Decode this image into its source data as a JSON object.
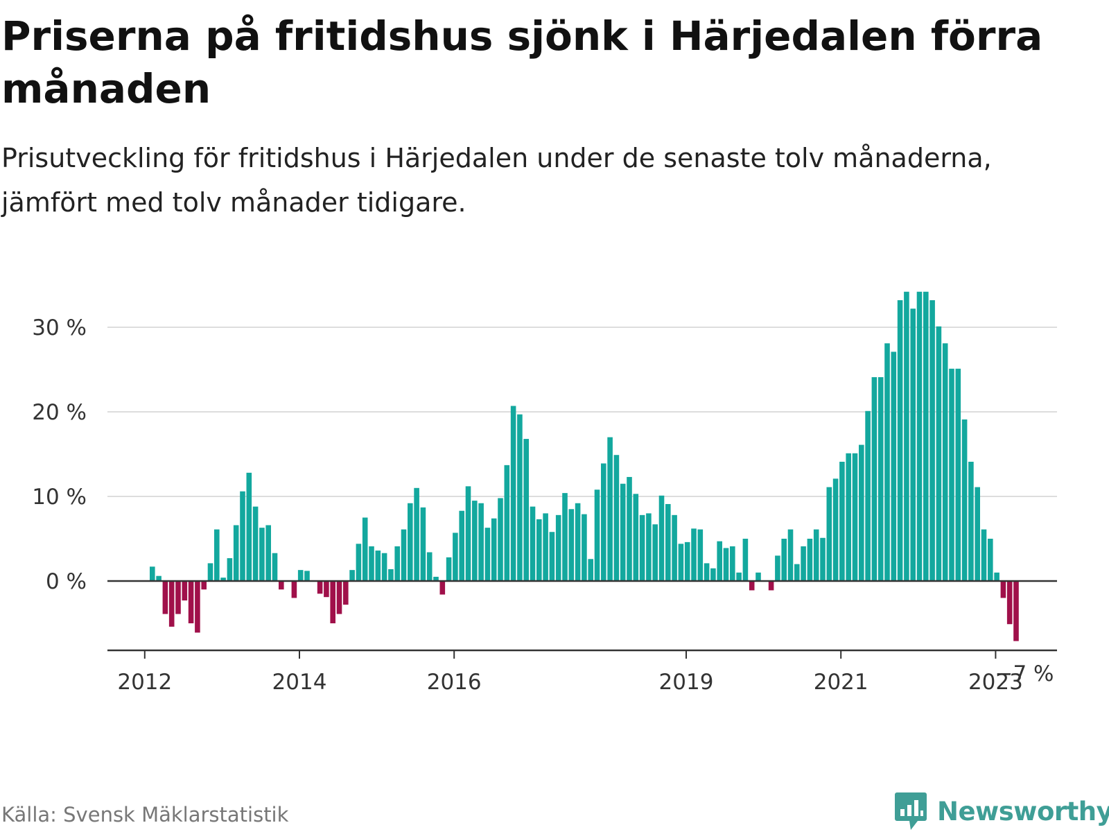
{
  "title": "Priserna på fritidshus sjönk i Härjedalen förra månaden",
  "subtitle": "Prisutveckling för fritidshus i Härjedalen under de senaste tolv månaderna, jämfört med tolv månader tidigare.",
  "source": "Källa: Svensk Mäklarstatistik",
  "brand": {
    "name": "Newsworthy",
    "icon": "newsworthy-logo-icon"
  },
  "colors": {
    "positive": "#13a89e",
    "negative": "#a0104a",
    "grid": "#dddddd",
    "axis": "#333333",
    "brand": "#3f9e96"
  },
  "chart_data": {
    "type": "bar",
    "x_start": "2012-01",
    "x_ticks": [
      "2012",
      "2014",
      "2016",
      "2019",
      "2021",
      "2023"
    ],
    "y_ticks": [
      "0 %",
      "10 %",
      "20 %",
      "30 %"
    ],
    "y_tick_values": [
      0,
      10,
      20,
      30
    ],
    "ylim": [
      -8,
      36
    ],
    "last_value_label": "−7 %",
    "grid": true,
    "legend": "none",
    "values": [
      1.7,
      0.6,
      -3.9,
      -5.4,
      -3.9,
      -2.3,
      -5.0,
      -6.1,
      -1.0,
      2.1,
      6.1,
      0.4,
      2.7,
      6.6,
      10.6,
      12.8,
      8.8,
      6.3,
      6.6,
      3.3,
      -1.0,
      0,
      -2.0,
      1.3,
      1.2,
      0,
      -1.5,
      -1.9,
      -5.0,
      -3.9,
      -2.8,
      1.3,
      4.4,
      7.5,
      4.1,
      3.6,
      3.3,
      1.4,
      4.1,
      6.1,
      9.2,
      11.0,
      8.7,
      3.4,
      0.5,
      -1.6,
      2.8,
      5.7,
      8.3,
      11.2,
      9.5,
      9.2,
      6.3,
      7.4,
      9.8,
      13.7,
      20.7,
      19.7,
      16.8,
      8.8,
      7.3,
      8.0,
      5.8,
      7.8,
      10.4,
      8.5,
      9.2,
      7.9,
      2.6,
      10.8,
      13.9,
      17.0,
      14.9,
      11.5,
      12.3,
      10.3,
      7.8,
      8.0,
      6.7,
      10.1,
      9.1,
      7.8,
      4.4,
      4.6,
      6.2,
      6.1,
      2.1,
      1.5,
      4.7,
      3.9,
      4.1,
      1.0,
      5.0,
      -1.1,
      1.0,
      0,
      -1.1,
      3.0,
      5.0,
      6.1,
      2.0,
      4.1,
      5.0,
      6.1,
      5.1,
      11.1,
      12.1,
      14.1,
      15.1,
      15.1,
      16.1,
      20.1,
      24.1,
      24.1,
      28.1,
      27.1,
      33.2,
      34.2,
      32.2,
      34.2,
      34.2,
      33.2,
      30.1,
      28.1,
      25.1,
      25.1,
      19.1,
      14.1,
      11.1,
      6.1,
      5.0,
      1.0,
      -2.0,
      -5.1,
      -7.1
    ]
  }
}
